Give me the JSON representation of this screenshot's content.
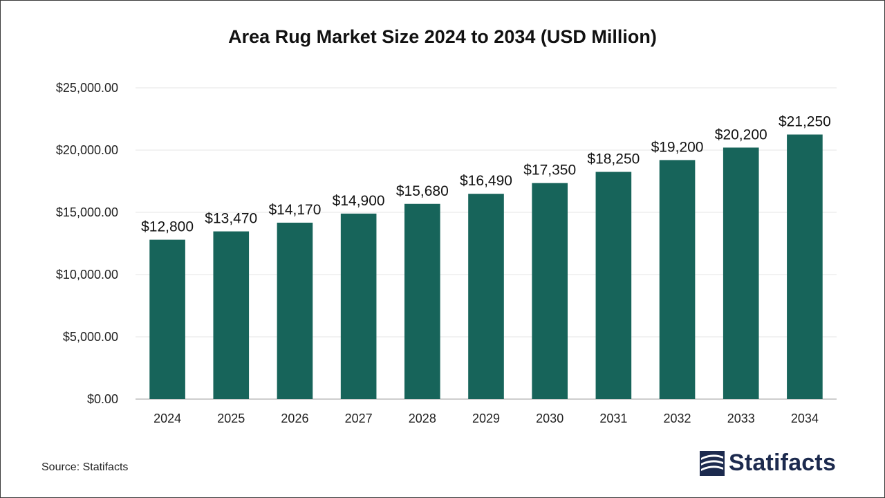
{
  "title": "Area Rug Market Size 2024 to 2034 (USD Million)",
  "source": "Source: Statifacts",
  "brand": "Statifacts",
  "colors": {
    "bar": "#17645A",
    "grid": "#e6e6e6",
    "axis": "#bdbdbd",
    "brand": "#1c2a4e"
  },
  "chart_data": {
    "type": "bar",
    "categories": [
      "2024",
      "2025",
      "2026",
      "2027",
      "2028",
      "2029",
      "2030",
      "2031",
      "2032",
      "2033",
      "2034"
    ],
    "values": [
      12800,
      13470,
      14170,
      14900,
      15680,
      16490,
      17350,
      18250,
      19200,
      20200,
      21250
    ],
    "value_labels": [
      "$12,800",
      "$13,470",
      "$14,170",
      "$14,900",
      "$15,680",
      "$16,490",
      "$17,350",
      "$18,250",
      "$19,200",
      "$20,200",
      "$21,250"
    ],
    "ylim": [
      0,
      25000
    ],
    "yticks": [
      0,
      5000,
      10000,
      15000,
      20000,
      25000
    ],
    "ytick_labels": [
      "$0.00",
      "$5,000.00",
      "$10,000.00",
      "$15,000.00",
      "$20,000.00",
      "$25,000.00"
    ],
    "grid": true,
    "legend": "none"
  }
}
